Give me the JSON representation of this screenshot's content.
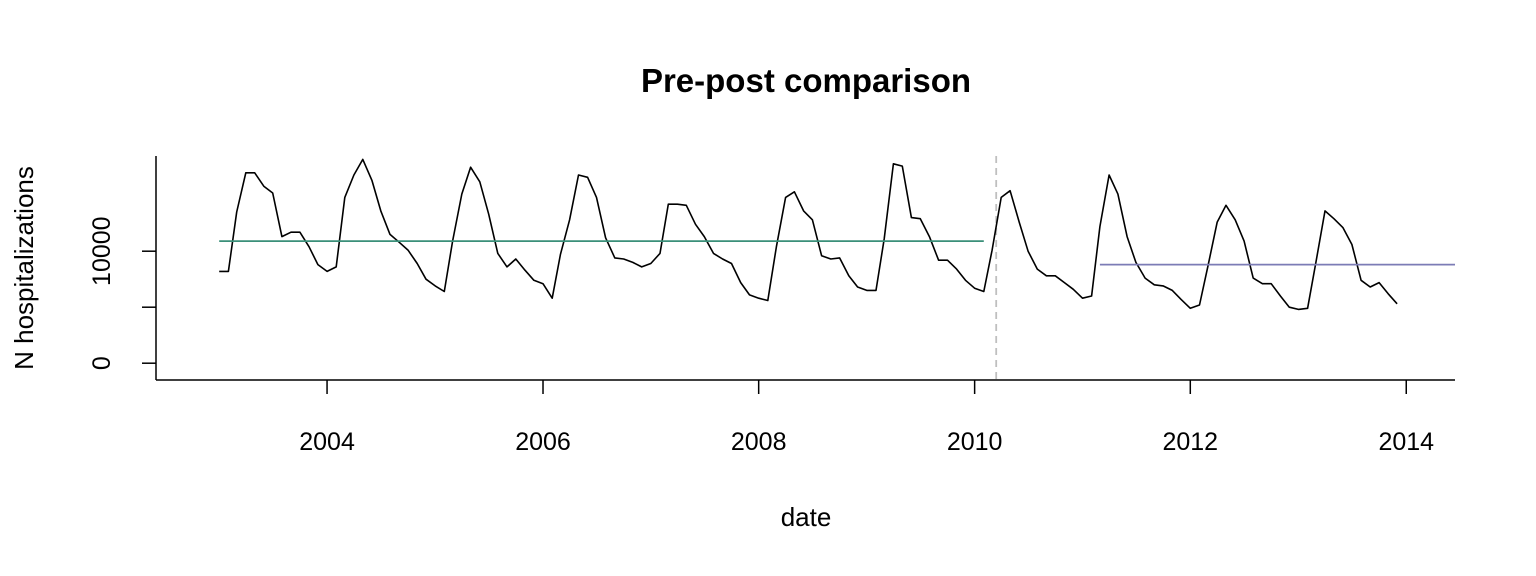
{
  "chart_data": {
    "type": "line",
    "title": "Pre-post comparison",
    "xlabel": "date",
    "ylabel": "N hospitalizations",
    "x_range": [
      "2002-06-01",
      "2014-06-15"
    ],
    "ylim": [
      -1500,
      18500
    ],
    "x_ticks": [
      "2004",
      "2006",
      "2008",
      "2010",
      "2012",
      "2014"
    ],
    "y_ticks": [
      0,
      5000,
      10000
    ],
    "y_tick_labels": [
      "0",
      "",
      "10000"
    ],
    "grid": false,
    "legend": "none",
    "series": [
      {
        "x": [
          "2003-01",
          "2003-02",
          "2003-03",
          "2003-04",
          "2003-05",
          "2003-06",
          "2003-07",
          "2003-08",
          "2003-09",
          "2003-10",
          "2003-11",
          "2003-12",
          "2004-01",
          "2004-02",
          "2004-03",
          "2004-04",
          "2004-05",
          "2004-06",
          "2004-07",
          "2004-08",
          "2004-09",
          "2004-10",
          "2004-11",
          "2004-12",
          "2005-01",
          "2005-02",
          "2005-03",
          "2005-04",
          "2005-05",
          "2005-06",
          "2005-07",
          "2005-08",
          "2005-09",
          "2005-10",
          "2005-11",
          "2005-12",
          "2006-01",
          "2006-02",
          "2006-03",
          "2006-04",
          "2006-05",
          "2006-06",
          "2006-07",
          "2006-08",
          "2006-09",
          "2006-10",
          "2006-11",
          "2006-12",
          "2007-01",
          "2007-02",
          "2007-03",
          "2007-04",
          "2007-05",
          "2007-06",
          "2007-07",
          "2007-08",
          "2007-09",
          "2007-10",
          "2007-11",
          "2007-12",
          "2008-01",
          "2008-02",
          "2008-03",
          "2008-04",
          "2008-05",
          "2008-06",
          "2008-07",
          "2008-08",
          "2008-09",
          "2008-10",
          "2008-11",
          "2008-12",
          "2009-01",
          "2009-02",
          "2009-03",
          "2009-04",
          "2009-05",
          "2009-06",
          "2009-07",
          "2009-08",
          "2009-09",
          "2009-10",
          "2009-11",
          "2009-12",
          "2010-01",
          "2010-02",
          "2010-03",
          "2010-04",
          "2010-05",
          "2010-06",
          "2010-07",
          "2010-08",
          "2010-09",
          "2010-10",
          "2010-11",
          "2010-12",
          "2011-01",
          "2011-02",
          "2011-03",
          "2011-04",
          "2011-05",
          "2011-06",
          "2011-07",
          "2011-08",
          "2011-09",
          "2011-10",
          "2011-11",
          "2011-12",
          "2012-01",
          "2012-02",
          "2012-03",
          "2012-04",
          "2012-05",
          "2012-06",
          "2012-07",
          "2012-08",
          "2012-09",
          "2012-10",
          "2012-11",
          "2012-12",
          "2013-01",
          "2013-02",
          "2013-03",
          "2013-04",
          "2013-05",
          "2013-06",
          "2013-07",
          "2013-08",
          "2013-09",
          "2013-10",
          "2013-11",
          "2013-12"
        ],
        "values": [
          8200,
          8200,
          13500,
          17000,
          17000,
          15800,
          15200,
          11300,
          11700,
          11700,
          10400,
          8800,
          8200,
          8600,
          14800,
          16800,
          18200,
          16300,
          13600,
          11500,
          10800,
          10100,
          8900,
          7500,
          6900,
          6400,
          10900,
          15100,
          17500,
          16200,
          13300,
          9800,
          8600,
          9300,
          8300,
          7400,
          7100,
          5800,
          9700,
          12800,
          16800,
          16600,
          14800,
          11200,
          9400,
          9300,
          9000,
          8600,
          8900,
          9800,
          14200,
          14200,
          14100,
          12400,
          11300,
          9800,
          9300,
          8900,
          7200,
          6100,
          5800,
          5600,
          10400,
          14800,
          15300,
          13600,
          12800,
          9600,
          9300,
          9400,
          7800,
          6800,
          6500,
          6500,
          11100,
          17800,
          17600,
          13000,
          12900,
          11300,
          9200,
          9200,
          8400,
          7400,
          6700,
          6400,
          10100,
          14800,
          15400,
          12600,
          10000,
          8400,
          7800,
          7800,
          7200,
          6600,
          5800,
          6000,
          12200,
          16800,
          15100,
          11300,
          9000,
          7600,
          7000,
          6900,
          6500,
          5700,
          4900,
          5200,
          8700,
          12600,
          14100,
          12800,
          10900,
          7600,
          7100,
          7100,
          6000,
          5000,
          4800,
          4900,
          9000,
          13600,
          12900,
          12100,
          10600,
          7400,
          6800,
          7200,
          6200,
          5300
        ]
      },
      {
        "x": [
          "2003-01-01",
          "2010-02-01"
        ],
        "values": [
          10900,
          10900
        ],
        "color": "#3a8f79"
      },
      {
        "x": [
          "2011-03-01",
          "2014-06-15"
        ],
        "values": [
          8800,
          8800
        ],
        "color": "#7c7cb6"
      }
    ],
    "reference_lines": [
      {
        "x": "2010-03-15",
        "style": "dashed",
        "color": "#bfbfbf"
      }
    ]
  }
}
